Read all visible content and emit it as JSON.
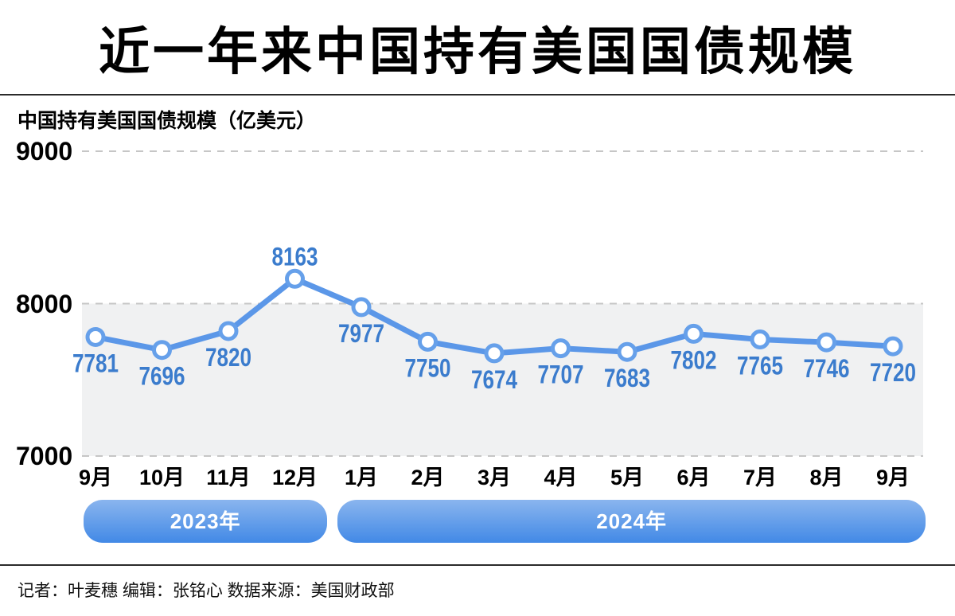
{
  "page": {
    "title": "近一年来中国持有美国国债规模",
    "footer": "记者：叶麦穗  编辑：张铭心  数据来源：美国财政部"
  },
  "chart_data": {
    "type": "line",
    "title": "中国持有美国国债规模（亿美元）",
    "unit": "亿美元",
    "categories": [
      "9月",
      "10月",
      "11月",
      "12月",
      "1月",
      "2月",
      "3月",
      "4月",
      "5月",
      "6月",
      "7月",
      "8月",
      "9月"
    ],
    "values": [
      7781,
      7696,
      7820,
      8163,
      7977,
      7750,
      7674,
      7707,
      7683,
      7802,
      7765,
      7746,
      7720
    ],
    "y_ticks": [
      9000,
      8000,
      7000
    ],
    "ylim": [
      7000,
      9000
    ],
    "grid": "dashed-horizontal",
    "legend": "none",
    "shaded_value_range": [
      7000,
      8000
    ],
    "labels_above_point": [
      8163
    ],
    "year_bands": [
      {
        "label": "2023年",
        "from_index": 0,
        "to_index": 3
      },
      {
        "label": "2024年",
        "from_index": 4,
        "to_index": 12
      }
    ],
    "colors": {
      "line": "#5b97e8",
      "marker_stroke": "#66a0ea",
      "marker_fill": "#ffffff",
      "value_label": "#3b7ccd",
      "grid_line": "#c6c6c6",
      "shade_band": "#f0f1f2",
      "band_gradient_top": "#8ab5ee",
      "band_gradient_bottom": "#4289e6",
      "text": "#000000"
    }
  }
}
